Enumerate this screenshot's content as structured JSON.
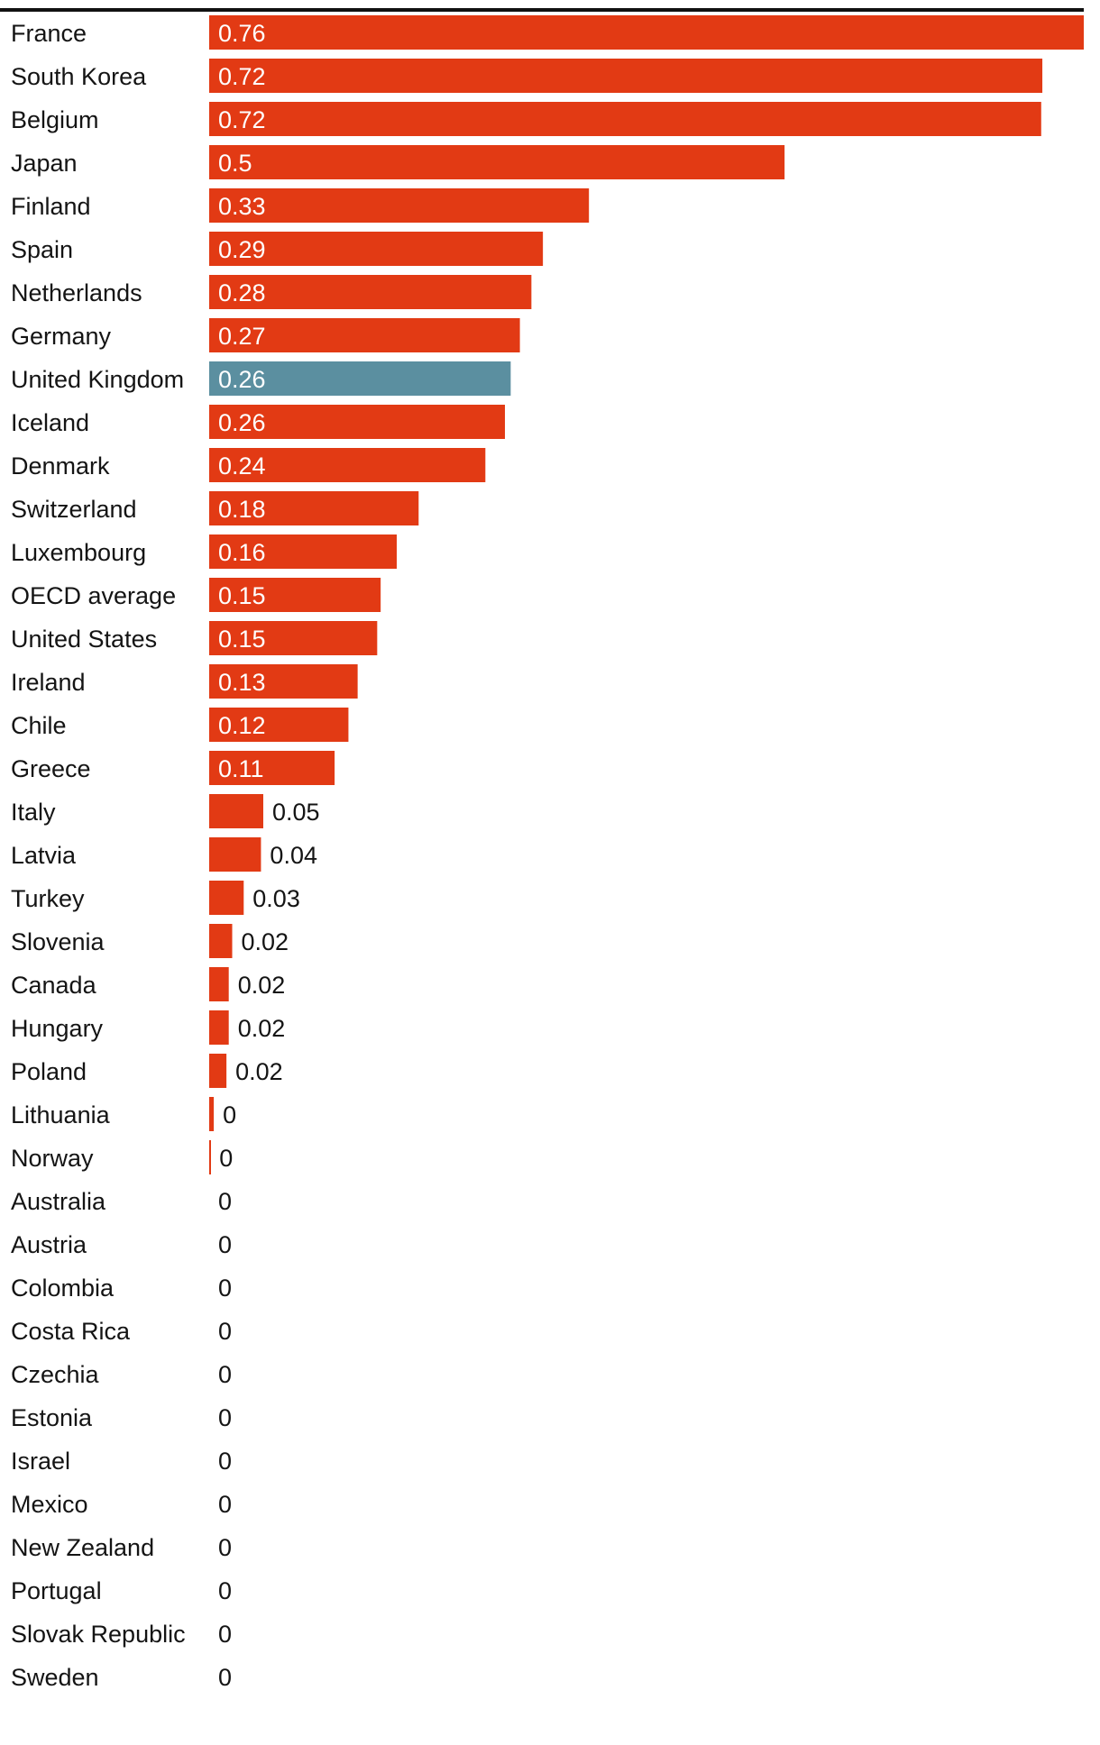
{
  "colors": {
    "bar": "#e23a14",
    "highlight": "#5b8fa0",
    "text": "#141414",
    "value_on_bar": "#ffffff",
    "top_rule": "#111111"
  },
  "chart_data": {
    "type": "bar",
    "orientation": "horizontal",
    "title": "",
    "xlabel": "",
    "ylabel": "",
    "xlim": [
      0,
      0.76
    ],
    "grid": false,
    "legend": "none",
    "highlight_category": "United Kingdom",
    "categories": [
      "France",
      "South Korea",
      "Belgium",
      "Japan",
      "Finland",
      "Spain",
      "Netherlands",
      "Germany",
      "United Kingdom",
      "Iceland",
      "Denmark",
      "Switzerland",
      "Luxembourg",
      "OECD average",
      "United States",
      "Ireland",
      "Chile",
      "Greece",
      "Italy",
      "Latvia",
      "Turkey",
      "Slovenia",
      "Canada",
      "Hungary",
      "Poland",
      "Lithuania",
      "Norway",
      "Australia",
      "Austria",
      "Colombia",
      "Costa Rica",
      "Czechia",
      "Estonia",
      "Israel",
      "Mexico",
      "New Zealand",
      "Portugal",
      "Slovak Republic",
      "Sweden"
    ],
    "values": [
      0.76,
      0.724,
      0.723,
      0.5,
      0.33,
      0.29,
      0.28,
      0.27,
      0.262,
      0.257,
      0.24,
      0.182,
      0.163,
      0.149,
      0.146,
      0.129,
      0.121,
      0.109,
      0.047,
      0.045,
      0.03,
      0.02,
      0.017,
      0.017,
      0.015,
      0.004,
      0.001,
      0,
      0,
      0,
      0,
      0,
      0,
      0,
      0,
      0,
      0,
      0,
      0
    ],
    "value_labels": [
      "0.76",
      "0.72",
      "0.72",
      "0.5",
      "0.33",
      "0.29",
      "0.28",
      "0.27",
      "0.26",
      "0.26",
      "0.24",
      "0.18",
      "0.16",
      "0.15",
      "0.15",
      "0.13",
      "0.12",
      "0.11",
      "0.05",
      "0.04",
      "0.03",
      "0.02",
      "0.02",
      "0.02",
      "0.02",
      "0",
      "0",
      "0",
      "0",
      "0",
      "0",
      "0",
      "0",
      "0",
      "0",
      "0",
      "0",
      "0",
      "0"
    ]
  }
}
